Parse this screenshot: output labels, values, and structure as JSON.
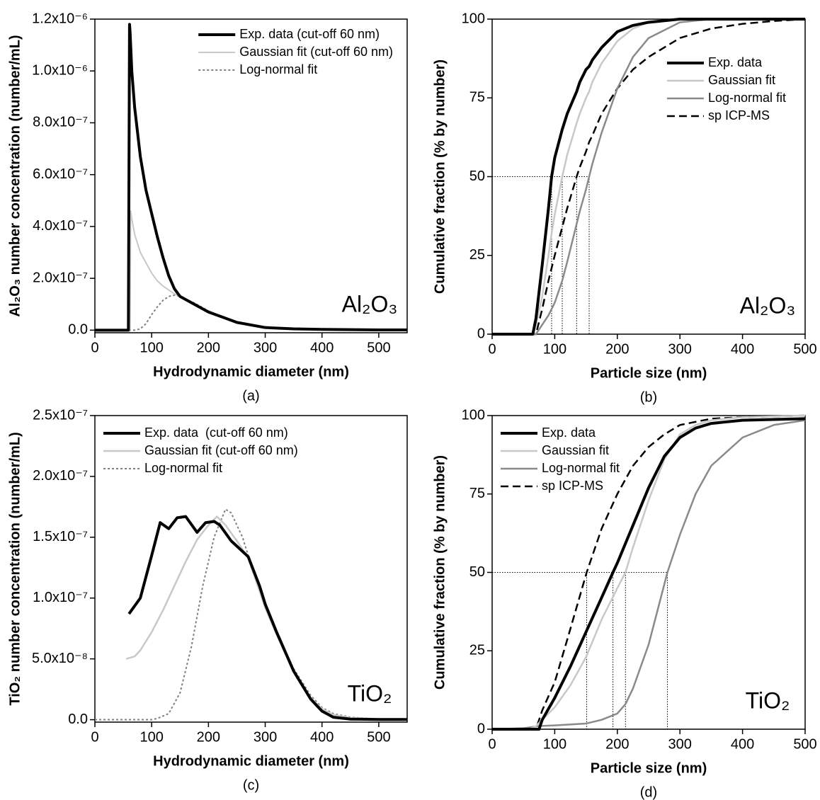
{
  "chart_data": [
    {
      "type": "line",
      "panel_label": "(a)",
      "annotation": "Al₂O₃",
      "xlabel": "Hydrodynamic diameter (nm)",
      "ylabel": "Al₂O₃ number concentration (number/mL)",
      "xlim": [
        0,
        550
      ],
      "ylim": [
        -1e-08,
        1.2e-06
      ],
      "xticks": [
        0,
        100,
        200,
        300,
        400,
        500
      ],
      "yticks": [
        {
          "value": 0,
          "label": "0.0"
        },
        {
          "value": 2e-07,
          "label": "2.0x10⁻⁷"
        },
        {
          "value": 4e-07,
          "label": "4.0x10⁻⁷"
        },
        {
          "value": 6e-07,
          "label": "6.0x10⁻⁷"
        },
        {
          "value": 8e-07,
          "label": "8.0x10⁻⁷"
        },
        {
          "value": 1e-06,
          "label": "1.0x10⁻⁶"
        },
        {
          "value": 1.2e-06,
          "label": "1.2x10⁻⁶"
        }
      ],
      "legend": "upper right",
      "series": [
        {
          "name": "Exp. data (cut-off 60 nm)",
          "color": "#000000",
          "style": "solid",
          "width": 4,
          "x": [
            0,
            59,
            61,
            62,
            63,
            65,
            70,
            80,
            90,
            100,
            110,
            120,
            130,
            140,
            150,
            175,
            200,
            225,
            250,
            300,
            350,
            400,
            450,
            500,
            550
          ],
          "values": [
            0,
            0,
            1.18e-06,
            1.15e-06,
            1.1e-06,
            1e-06,
            8.6e-07,
            6.7e-07,
            5.4e-07,
            4.5e-07,
            3.6e-07,
            2.8e-07,
            2.1e-07,
            1.6e-07,
            1.3e-07,
            1e-07,
            7e-08,
            5e-08,
            3e-08,
            1e-08,
            5e-09,
            3e-09,
            2e-09,
            1e-09,
            1e-09
          ]
        },
        {
          "name": "Gaussian fit (cut-off 60 nm)",
          "color": "#c8c8c8",
          "style": "solid",
          "width": 2,
          "x": [
            0,
            59,
            61,
            62,
            63,
            65,
            70,
            80,
            90,
            100,
            110,
            120,
            130,
            140,
            150,
            175,
            200,
            225,
            250,
            300,
            350,
            400,
            450,
            500,
            550
          ],
          "values": [
            0,
            0,
            0,
            0,
            4.6e-07,
            4.3e-07,
            3.7e-07,
            3e-07,
            2.6e-07,
            2.2e-07,
            1.9e-07,
            1.7e-07,
            1.55e-07,
            1.4e-07,
            1.3e-07,
            1e-07,
            7.5e-08,
            5e-08,
            3e-08,
            1e-08,
            5e-09,
            3e-09,
            2e-09,
            1e-09,
            1e-09
          ]
        },
        {
          "name": "Log-normal fit",
          "color": "#808080",
          "style": "dotted",
          "width": 2,
          "x": [
            0,
            59,
            61,
            62,
            63,
            65,
            70,
            80,
            90,
            100,
            110,
            120,
            130,
            140,
            150,
            175,
            200,
            225,
            250,
            300,
            350,
            400,
            450,
            500,
            550
          ],
          "values": [
            0,
            0,
            0,
            0,
            0,
            0,
            0,
            5e-09,
            2.5e-08,
            6e-08,
            9e-08,
            1.15e-07,
            1.3e-07,
            1.35e-07,
            1.3e-07,
            1.05e-07,
            7.5e-08,
            5e-08,
            3e-08,
            1e-08,
            5e-09,
            3e-09,
            2e-09,
            1e-09,
            1e-09
          ]
        }
      ]
    },
    {
      "type": "line",
      "panel_label": "(b)",
      "annotation": "Al₂O₃",
      "xlabel": "Particle size (nm)",
      "ylabel": "Cumulative fraction (% by number)",
      "xlim": [
        0,
        500
      ],
      "ylim": [
        0,
        100
      ],
      "xticks": [
        0,
        100,
        200,
        300,
        400,
        500
      ],
      "yticks": [
        0,
        25,
        50,
        75,
        100
      ],
      "legend": "right",
      "median_lines": {
        "y": 50,
        "x": [
          95,
          112,
          135,
          155
        ]
      },
      "series": [
        {
          "name": "Exp. data",
          "color": "#000000",
          "style": "solid",
          "width": 4,
          "x": [
            0,
            60,
            65,
            70,
            80,
            90,
            95,
            100,
            112,
            120,
            135,
            140,
            150,
            155,
            160,
            175,
            200,
            225,
            250,
            300,
            350,
            400,
            450,
            500
          ],
          "values": [
            0,
            0,
            0,
            5,
            22,
            40,
            50,
            56,
            65,
            70,
            77,
            80,
            84,
            85,
            87,
            91,
            96,
            98,
            99,
            100,
            100,
            100,
            100,
            100
          ]
        },
        {
          "name": "Gaussian fit",
          "color": "#c8c8c8",
          "style": "solid",
          "width": 2.5,
          "x": [
            0,
            60,
            65,
            70,
            80,
            90,
            95,
            100,
            112,
            120,
            135,
            140,
            150,
            155,
            160,
            175,
            200,
            225,
            250,
            300,
            350,
            400,
            450,
            500
          ],
          "values": [
            0,
            0,
            0,
            3,
            12,
            25,
            32,
            38,
            50,
            57,
            67,
            70,
            75,
            77,
            80,
            86,
            93,
            97,
            99,
            100,
            100,
            100,
            100,
            100
          ]
        },
        {
          "name": "Log-normal fit",
          "color": "#8a8a8a",
          "style": "solid",
          "width": 2.5,
          "x": [
            0,
            60,
            65,
            70,
            80,
            90,
            95,
            100,
            112,
            120,
            135,
            140,
            150,
            155,
            160,
            175,
            200,
            225,
            250,
            300,
            350,
            400,
            450,
            500
          ],
          "values": [
            0,
            0,
            0,
            0,
            3,
            6,
            8,
            10,
            17,
            23,
            35,
            39,
            46,
            50,
            54,
            64,
            78,
            88,
            94,
            99,
            100,
            100,
            100,
            100
          ]
        },
        {
          "name": "sp ICP-MS",
          "color": "#000000",
          "style": "dashed",
          "width": 2.5,
          "x": [
            0,
            60,
            65,
            70,
            80,
            90,
            95,
            100,
            112,
            120,
            135,
            140,
            150,
            155,
            160,
            175,
            200,
            225,
            250,
            300,
            350,
            400,
            450,
            500
          ],
          "values": [
            0,
            0,
            0,
            0,
            8,
            17,
            21,
            25,
            34,
            40,
            50,
            53,
            58,
            61,
            63,
            70,
            78,
            84,
            88,
            94,
            97,
            98.5,
            99.4,
            100
          ]
        }
      ]
    },
    {
      "type": "line",
      "panel_label": "(c)",
      "annotation": "TiO₂",
      "xlabel": "Hydrodynamic diameter (nm)",
      "ylabel": "TiO₂ number concentration (number/mL)",
      "xlim": [
        0,
        550
      ],
      "ylim": [
        -2e-09,
        2.5e-07
      ],
      "xticks": [
        0,
        100,
        200,
        300,
        400,
        500
      ],
      "yticks": [
        {
          "value": 0,
          "label": "0.0"
        },
        {
          "value": 5e-08,
          "label": "5.0x10⁻⁸"
        },
        {
          "value": 1e-07,
          "label": "1.0x10⁻⁷"
        },
        {
          "value": 1.5e-07,
          "label": "1.5x10⁻⁷"
        },
        {
          "value": 2e-07,
          "label": "2.0x10⁻⁷"
        },
        {
          "value": 2.5e-07,
          "label": "2.5x10⁻⁷"
        }
      ],
      "legend": "upper left",
      "series": [
        {
          "name": "Exp. data  (cut-off 60 nm)",
          "color": "#000000",
          "style": "solid",
          "width": 4,
          "x": [
            60,
            80,
            100,
            115,
            130,
            145,
            160,
            180,
            195,
            210,
            220,
            240,
            270,
            290,
            300,
            320,
            350,
            380,
            400,
            420,
            450,
            500,
            550
          ],
          "values": [
            8.7e-08,
            1e-07,
            1.35e-07,
            1.62e-07,
            1.57e-07,
            1.66e-07,
            1.67e-07,
            1.54e-07,
            1.62e-07,
            1.63e-07,
            1.6e-07,
            1.47e-07,
            1.34e-07,
            1.1e-07,
            9.5e-08,
            7.2e-08,
            4e-08,
            1.7e-08,
            7e-09,
            2e-09,
            5e-10,
            2e-10,
            2e-10
          ]
        },
        {
          "name": "Gaussian fit (cut-off 60 nm)",
          "color": "#c8c8c8",
          "style": "solid",
          "width": 2.5,
          "x": [
            55,
            70,
            80,
            100,
            120,
            140,
            160,
            180,
            200,
            215,
            230,
            250,
            270,
            300,
            320,
            350,
            380,
            400,
            420,
            450,
            500,
            550
          ],
          "values": [
            5e-08,
            5.2e-08,
            5.7e-08,
            7.2e-08,
            9e-08,
            1.1e-07,
            1.3e-07,
            1.48e-07,
            1.6e-07,
            1.67e-07,
            1.6e-07,
            1.47e-07,
            1.33e-07,
            9.2e-08,
            7e-08,
            4e-08,
            1.8e-08,
            9e-09,
            4e-09,
            1.5e-09,
            5e-10,
            3e-10
          ]
        },
        {
          "name": "Log-normal fit",
          "color": "#808080",
          "style": "dotted",
          "width": 2,
          "x": [
            0,
            100,
            110,
            130,
            150,
            170,
            190,
            210,
            230,
            240,
            260,
            270,
            300,
            320,
            350,
            380,
            400,
            420,
            450,
            500,
            550
          ],
          "values": [
            0,
            0,
            1e-09,
            5e-09,
            2.2e-08,
            6e-08,
            1.1e-07,
            1.5e-07,
            1.73e-07,
            1.7e-07,
            1.5e-07,
            1.35e-07,
            9.5e-08,
            7.2e-08,
            4.2e-08,
            2e-08,
            1e-08,
            5e-09,
            2e-09,
            5e-10,
            2e-10
          ]
        }
      ]
    },
    {
      "type": "line",
      "panel_label": "(d)",
      "annotation": "TiO₂",
      "xlabel": "Particle size (nm)",
      "ylabel": "Cumulative fraction (% by number)",
      "xlim": [
        0,
        500
      ],
      "ylim": [
        0,
        100
      ],
      "xticks": [
        0,
        100,
        200,
        300,
        400,
        500
      ],
      "yticks": [
        0,
        25,
        50,
        75,
        100
      ],
      "legend": "upper left",
      "median_lines": {
        "y": 50,
        "x": [
          151,
          193,
          213,
          280
        ]
      },
      "series": [
        {
          "name": "Exp. data",
          "color": "#000000",
          "style": "solid",
          "width": 4,
          "x": [
            0,
            75,
            80,
            100,
            125,
            150,
            175,
            193,
            200,
            225,
            250,
            275,
            300,
            325,
            350,
            400,
            500
          ],
          "values": [
            0,
            0,
            3,
            10,
            20,
            31,
            42,
            50,
            53,
            65,
            77,
            87,
            93,
            96,
            97.5,
            98.5,
            99
          ]
        },
        {
          "name": "Gaussian fit",
          "color": "#c8c8c8",
          "style": "solid",
          "width": 2.5,
          "x": [
            0,
            60,
            70,
            80,
            100,
            125,
            150,
            175,
            200,
            213,
            225,
            250,
            275,
            300,
            325,
            350,
            400,
            500
          ],
          "values": [
            0,
            0,
            1,
            3,
            7,
            14,
            23,
            35,
            45,
            50,
            58,
            73,
            86,
            94,
            97,
            98.5,
            99.5,
            100
          ]
        },
        {
          "name": "Log-normal fit",
          "color": "#8a8a8a",
          "style": "solid",
          "width": 2.5,
          "x": [
            0,
            50,
            75,
            100,
            150,
            175,
            200,
            213,
            225,
            250,
            280,
            300,
            325,
            350,
            400,
            450,
            500
          ],
          "values": [
            0,
            0.3,
            1,
            1.2,
            1.8,
            3,
            5,
            8,
            13,
            27,
            50,
            62,
            75,
            84,
            93,
            97,
            98.5
          ]
        },
        {
          "name": "sp ICP-MS",
          "color": "#000000",
          "style": "dashed",
          "width": 2.5,
          "x": [
            0,
            70,
            80,
            100,
            125,
            151,
            175,
            200,
            225,
            250,
            275,
            300,
            350,
            400,
            500
          ],
          "values": [
            0,
            0,
            6,
            15,
            32,
            50,
            64,
            75,
            84,
            90,
            94,
            97,
            99,
            99.5,
            100
          ]
        }
      ]
    }
  ]
}
